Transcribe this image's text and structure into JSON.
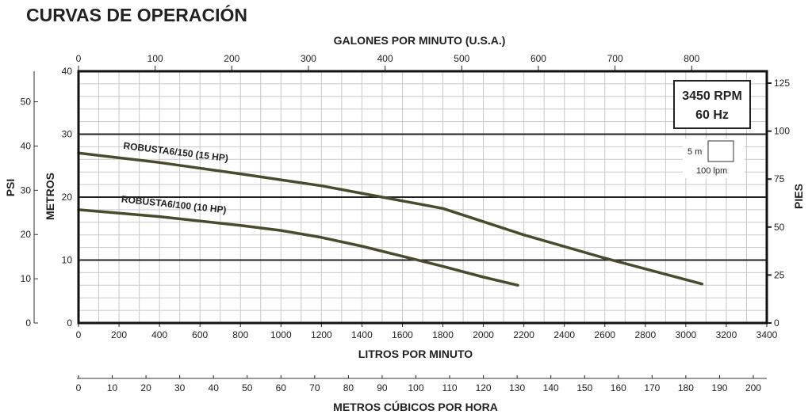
{
  "chart_data": {
    "type": "line",
    "title": "CURVAS DE OPERACIÓN",
    "annotation": {
      "rpm": "3450 RPM",
      "hz": "60 Hz"
    },
    "scale_legend": {
      "height": "5 m",
      "flow": "100 lpm"
    },
    "axes": {
      "top": {
        "label": "GALONES POR MINUTO (U.S.A.)",
        "range": [
          0,
          898
        ],
        "ticks": [
          "0",
          "100",
          "200",
          "300",
          "400",
          "500",
          "600",
          "700",
          "800"
        ]
      },
      "bottom": {
        "label": "LITROS POR MINUTO",
        "range": [
          0,
          3400
        ],
        "ticks": [
          "0",
          "200",
          "400",
          "600",
          "800",
          "1000",
          "1200",
          "1400",
          "1600",
          "1800",
          "2000",
          "2200",
          "2400",
          "2600",
          "2800",
          "3000",
          "3200",
          "3400"
        ]
      },
      "cubic": {
        "label": "METROS CÚBICOS POR HORA",
        "range": [
          0,
          204
        ],
        "ticks": [
          "0",
          "10",
          "20",
          "30",
          "40",
          "50",
          "60",
          "70",
          "80",
          "90",
          "100",
          "110",
          "120",
          "130",
          "140",
          "150",
          "160",
          "170",
          "180",
          "190",
          "200"
        ]
      },
      "left_metros": {
        "label": "METROS",
        "range": [
          0,
          40
        ],
        "ticks": [
          "0",
          "10",
          "20",
          "30",
          "40"
        ]
      },
      "left_psi": {
        "label": "PSI",
        "range": [
          0,
          56.9
        ],
        "ticks": [
          "0",
          "10",
          "20",
          "30",
          "40",
          "50"
        ]
      },
      "right_pies": {
        "label": "PIES",
        "range": [
          0,
          131.2
        ],
        "ticks": [
          "0",
          "25",
          "50",
          "75",
          "100",
          "125"
        ]
      }
    },
    "grid": true,
    "series": [
      {
        "name": "ROBUSTA6/150 (15 HP)",
        "x": [
          0,
          400,
          800,
          1200,
          1500,
          1800,
          2200,
          2600,
          3080
        ],
        "y": [
          27.0,
          25.5,
          23.7,
          21.8,
          20.0,
          18.2,
          14.0,
          10.3,
          6.2
        ]
      },
      {
        "name": "ROBUSTA6/100 (10 HP)",
        "x": [
          0,
          400,
          800,
          1000,
          1200,
          1400,
          1600,
          1800,
          2000,
          2170
        ],
        "y": [
          18.0,
          16.9,
          15.5,
          14.7,
          13.6,
          12.2,
          10.6,
          9.0,
          7.3,
          6.0
        ]
      }
    ]
  }
}
